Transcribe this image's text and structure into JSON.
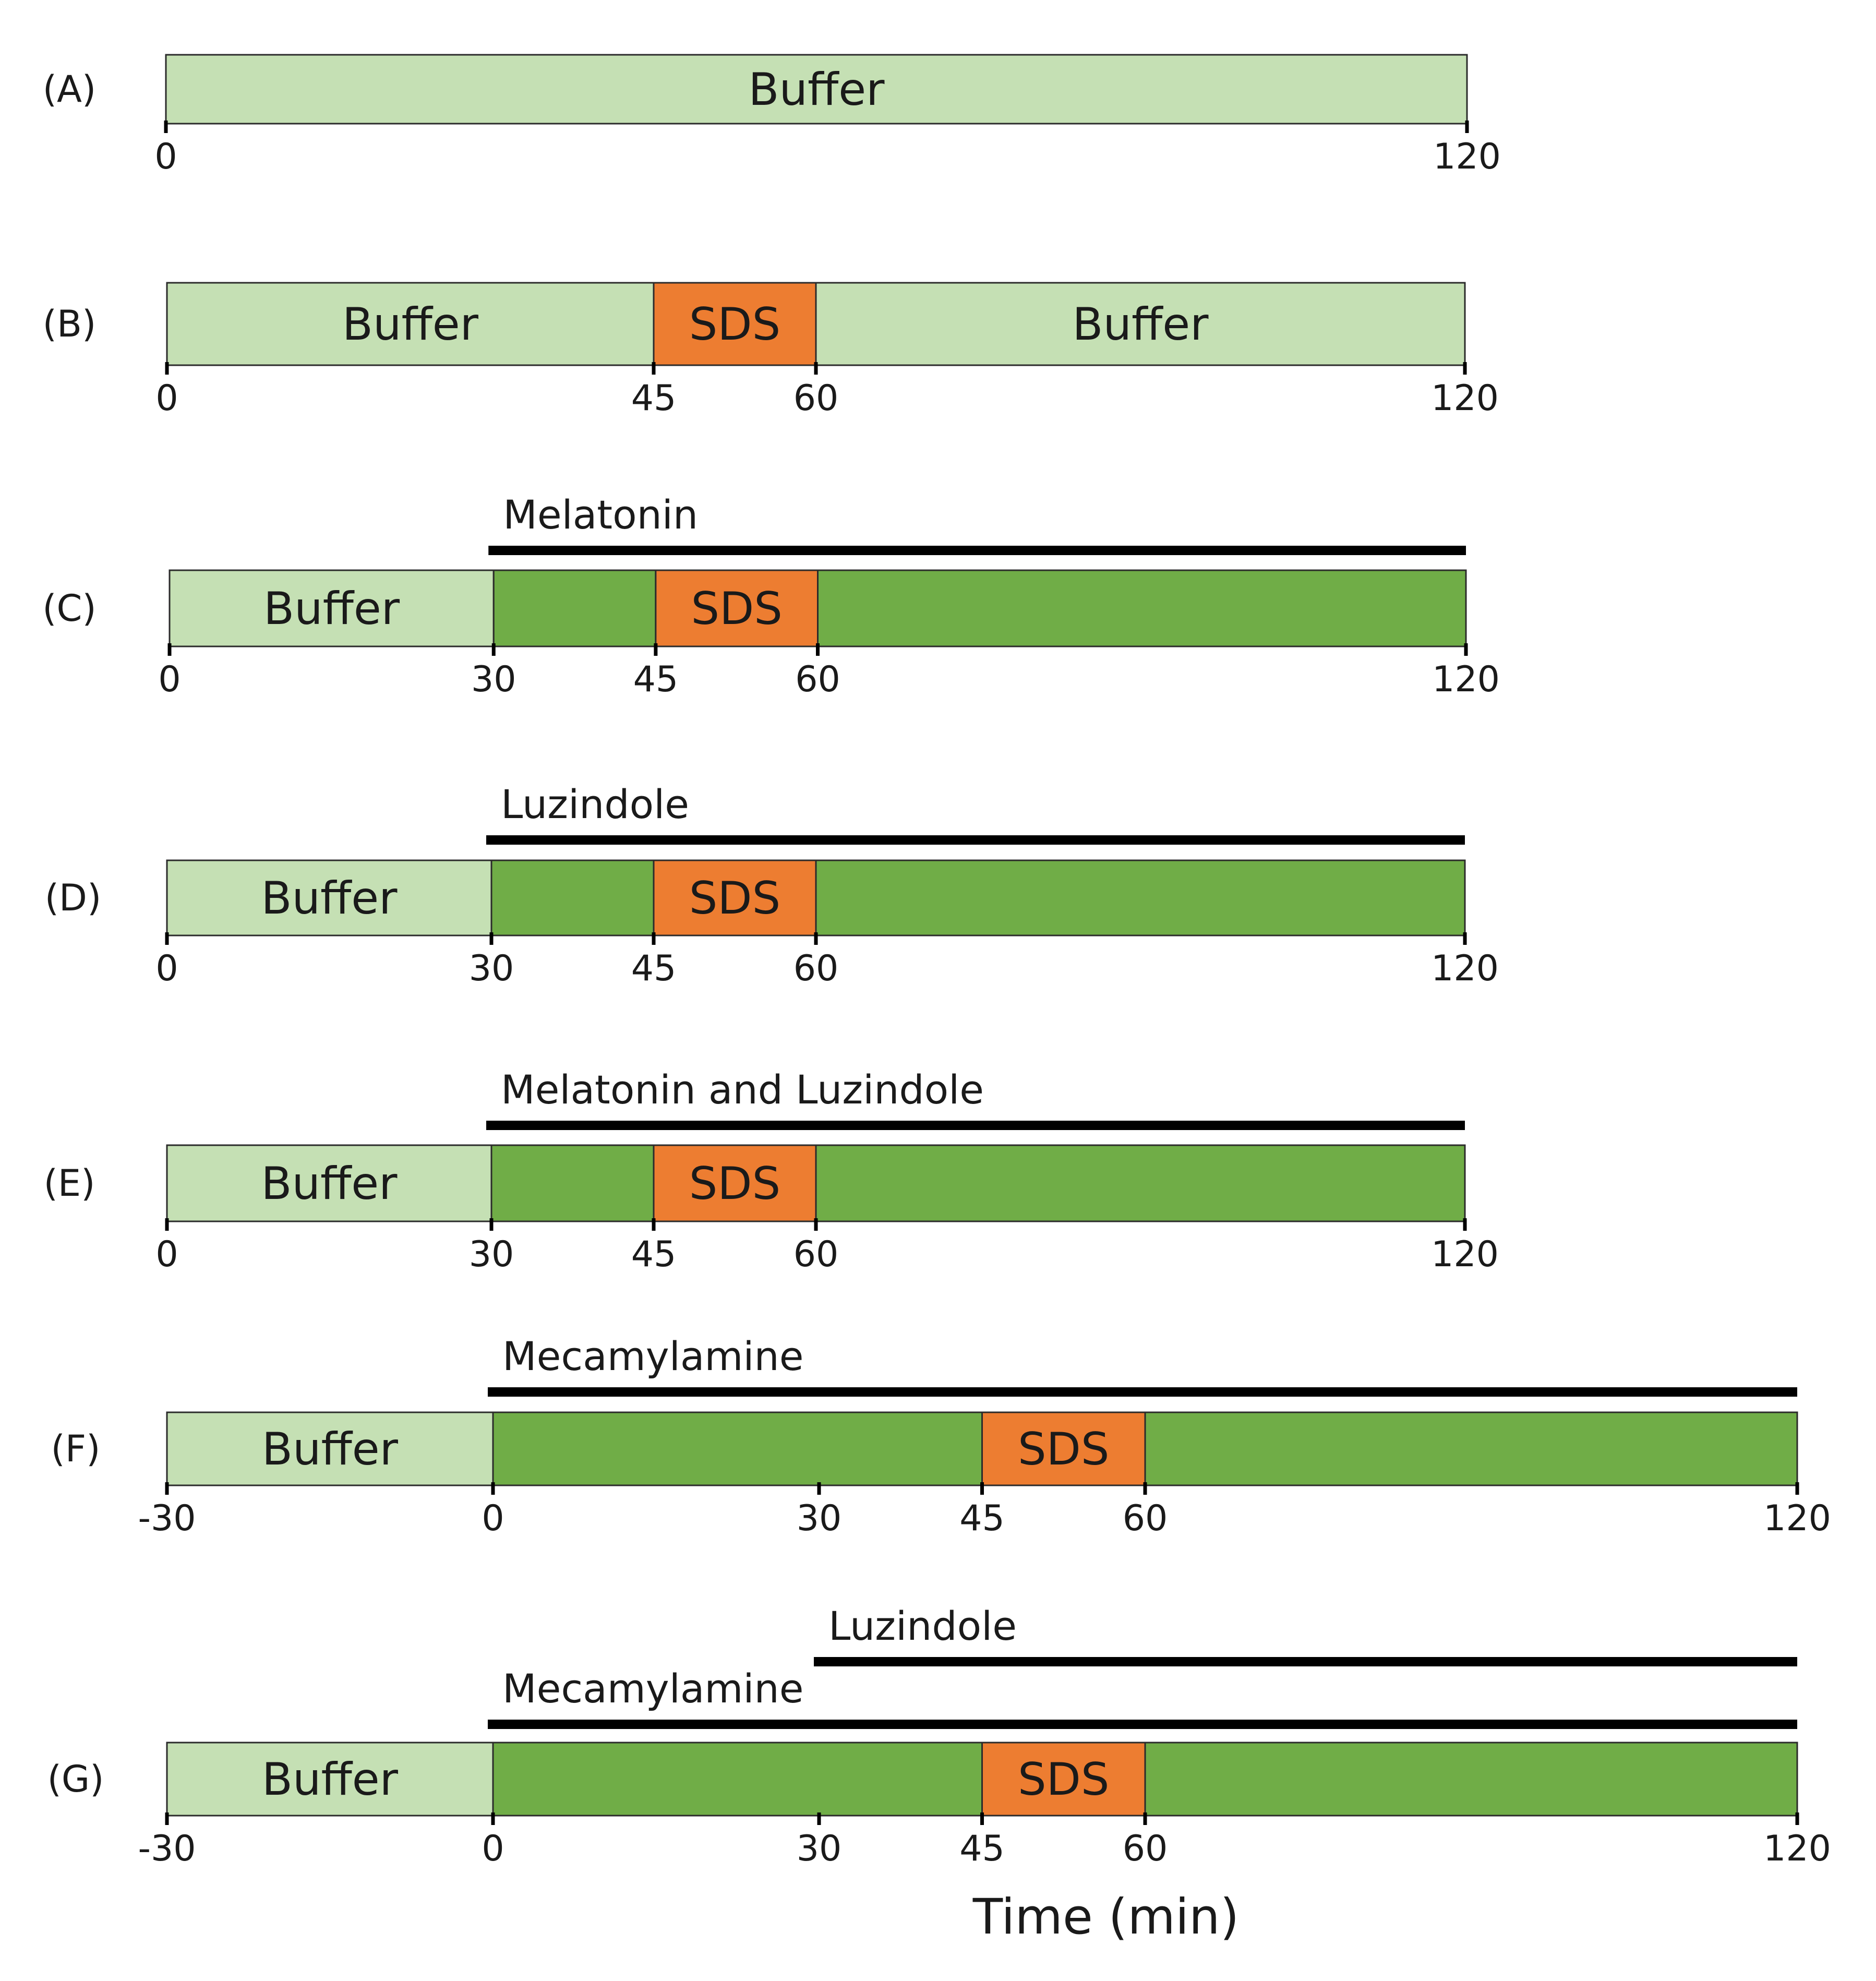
{
  "colors": {
    "buffer": "#c5e0b4",
    "drug": "#70ad47",
    "sds": "#ed7d31",
    "outline": "#2b2b2b",
    "bar": "#000000"
  },
  "axis_title": "Time (min)",
  "panels": [
    {
      "label": "(A)",
      "range": [
        0,
        120
      ],
      "segments": [
        {
          "start": 0,
          "end": 120,
          "kind": "buffer",
          "text": "Buffer"
        }
      ],
      "ticks": [
        {
          "value": 0,
          "text": "0"
        },
        {
          "value": 120,
          "text": "120"
        }
      ],
      "drugs": []
    },
    {
      "label": "(B)",
      "range": [
        0,
        120
      ],
      "segments": [
        {
          "start": 0,
          "end": 45,
          "kind": "buffer",
          "text": "Buffer"
        },
        {
          "start": 45,
          "end": 60,
          "kind": "sds",
          "text": "SDS"
        },
        {
          "start": 60,
          "end": 120,
          "kind": "buffer",
          "text": "Buffer"
        }
      ],
      "ticks": [
        {
          "value": 0,
          "text": "0"
        },
        {
          "value": 45,
          "text": "45"
        },
        {
          "value": 60,
          "text": "60"
        },
        {
          "value": 120,
          "text": "120"
        }
      ],
      "drugs": []
    },
    {
      "label": "(C)",
      "range": [
        0,
        120
      ],
      "segments": [
        {
          "start": 0,
          "end": 30,
          "kind": "buffer",
          "text": "Buffer"
        },
        {
          "start": 30,
          "end": 45,
          "kind": "drug",
          "text": ""
        },
        {
          "start": 45,
          "end": 60,
          "kind": "sds",
          "text": "SDS"
        },
        {
          "start": 60,
          "end": 120,
          "kind": "drug",
          "text": ""
        }
      ],
      "ticks": [
        {
          "value": 0,
          "text": "0"
        },
        {
          "value": 30,
          "text": "30"
        },
        {
          "value": 45,
          "text": "45"
        },
        {
          "value": 60,
          "text": "60"
        },
        {
          "value": 120,
          "text": "120"
        }
      ],
      "drugs": [
        {
          "name": "Melatonin",
          "start": 30,
          "end": 120
        }
      ]
    },
    {
      "label": "(D)",
      "range": [
        0,
        120
      ],
      "segments": [
        {
          "start": 0,
          "end": 30,
          "kind": "buffer",
          "text": "Buffer"
        },
        {
          "start": 30,
          "end": 45,
          "kind": "drug",
          "text": ""
        },
        {
          "start": 45,
          "end": 60,
          "kind": "sds",
          "text": "SDS"
        },
        {
          "start": 60,
          "end": 120,
          "kind": "drug",
          "text": ""
        }
      ],
      "ticks": [
        {
          "value": 0,
          "text": "0"
        },
        {
          "value": 30,
          "text": "30"
        },
        {
          "value": 45,
          "text": "45"
        },
        {
          "value": 60,
          "text": "60"
        },
        {
          "value": 120,
          "text": "120"
        }
      ],
      "drugs": [
        {
          "name": "Luzindole",
          "start": 30,
          "end": 120
        }
      ]
    },
    {
      "label": "(E)",
      "range": [
        0,
        120
      ],
      "segments": [
        {
          "start": 0,
          "end": 30,
          "kind": "buffer",
          "text": "Buffer"
        },
        {
          "start": 30,
          "end": 45,
          "kind": "drug",
          "text": ""
        },
        {
          "start": 45,
          "end": 60,
          "kind": "sds",
          "text": "SDS"
        },
        {
          "start": 60,
          "end": 120,
          "kind": "drug",
          "text": ""
        }
      ],
      "ticks": [
        {
          "value": 0,
          "text": "0"
        },
        {
          "value": 30,
          "text": "30"
        },
        {
          "value": 45,
          "text": "45"
        },
        {
          "value": 60,
          "text": "60"
        },
        {
          "value": 120,
          "text": "120"
        }
      ],
      "drugs": [
        {
          "name": "Melatonin and Luzindole",
          "start": 30,
          "end": 120
        }
      ]
    },
    {
      "label": "(F)",
      "range": [
        -30,
        120
      ],
      "segments": [
        {
          "start": -30,
          "end": 0,
          "kind": "buffer",
          "text": "Buffer"
        },
        {
          "start": 0,
          "end": 45,
          "kind": "drug",
          "text": ""
        },
        {
          "start": 45,
          "end": 60,
          "kind": "sds",
          "text": "SDS"
        },
        {
          "start": 60,
          "end": 120,
          "kind": "drug",
          "text": ""
        }
      ],
      "ticks": [
        {
          "value": -30,
          "text": "-30"
        },
        {
          "value": 0,
          "text": "0"
        },
        {
          "value": 30,
          "text": "30"
        },
        {
          "value": 45,
          "text": "45"
        },
        {
          "value": 60,
          "text": "60"
        },
        {
          "value": 120,
          "text": "120"
        }
      ],
      "drugs": [
        {
          "name": "Mecamylamine",
          "start": 0,
          "end": 120
        }
      ]
    },
    {
      "label": "(G)",
      "range": [
        -30,
        120
      ],
      "segments": [
        {
          "start": -30,
          "end": 0,
          "kind": "buffer",
          "text": "Buffer"
        },
        {
          "start": 0,
          "end": 45,
          "kind": "drug",
          "text": ""
        },
        {
          "start": 45,
          "end": 60,
          "kind": "sds",
          "text": "SDS"
        },
        {
          "start": 60,
          "end": 120,
          "kind": "drug",
          "text": ""
        }
      ],
      "ticks": [
        {
          "value": -30,
          "text": "-30"
        },
        {
          "value": 0,
          "text": "0"
        },
        {
          "value": 30,
          "text": "30"
        },
        {
          "value": 45,
          "text": "45"
        },
        {
          "value": 60,
          "text": "60"
        },
        {
          "value": 120,
          "text": "120"
        }
      ],
      "drugs": [
        {
          "name": "Luzindole",
          "start": 30,
          "end": 120
        },
        {
          "name": "Mecamylamine",
          "start": 0,
          "end": 120
        }
      ]
    }
  ]
}
